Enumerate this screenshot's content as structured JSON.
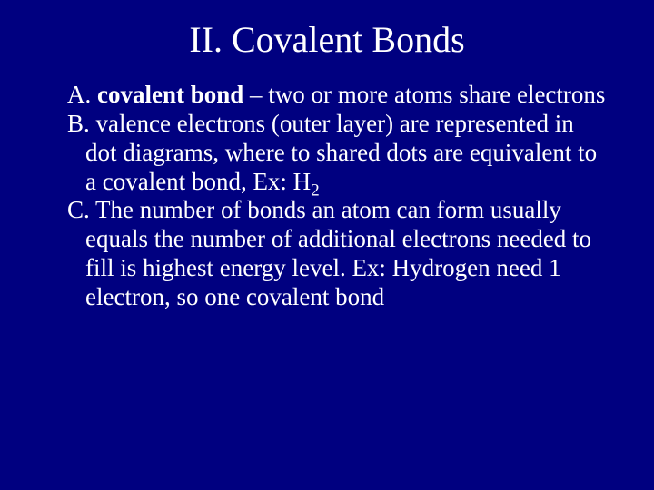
{
  "slide": {
    "background_color": "#000080",
    "text_color": "#ffffff",
    "font_family": "Times New Roman",
    "title": "II. Covalent Bonds",
    "title_fontsize": 40,
    "body_fontsize": 27,
    "items": [
      {
        "prefix": "A. ",
        "bold": "covalent bond",
        "rest": " – two or more atoms share electrons"
      },
      {
        "prefix": "B. ",
        "bold": "",
        "rest": "valence electrons (outer layer) are represented in dot diagrams, where to shared dots are equivalent to a covalent bond, Ex: H",
        "subscript": "2"
      },
      {
        "prefix": "C. ",
        "bold": "",
        "rest": "The number of bonds an atom can form usually equals the number of additional electrons needed to fill is highest energy level. Ex: Hydrogen need 1 electron, so one covalent bond"
      }
    ]
  }
}
